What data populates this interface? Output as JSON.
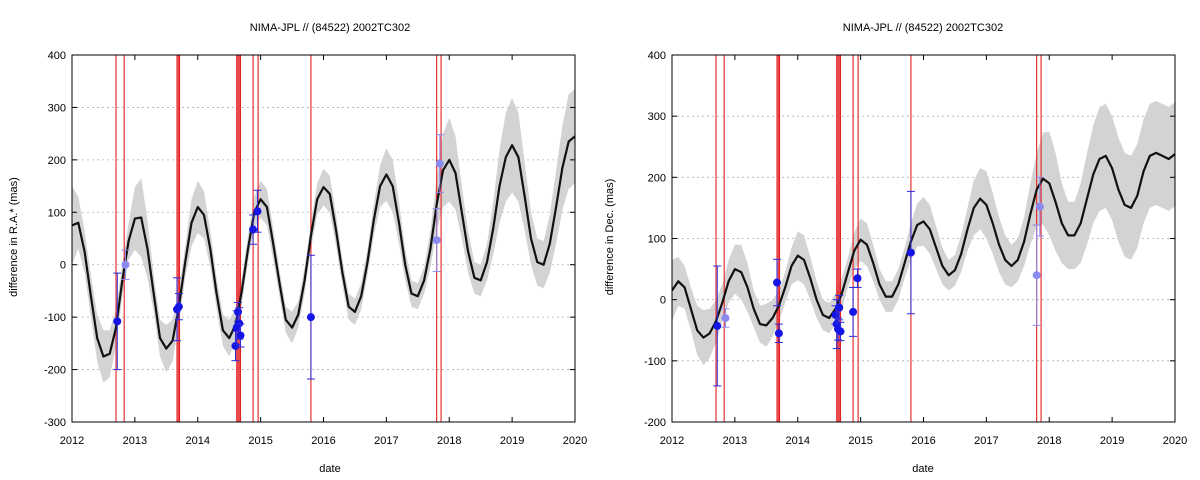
{
  "colors": {
    "model_line": "#111111",
    "uncertainty_band": "#d3d3d3",
    "observation": "#1515e6",
    "observation_light": "#8a8af0",
    "error_bar": "#2a2ae0",
    "observation_epoch": "#e52020",
    "grid": "#b0b0b0"
  },
  "chart_data": [
    {
      "type": "line",
      "title": "NIMA-JPL // (84522) 2002TC302",
      "xlabel": "date",
      "ylabel": "difference in R.A.* (mas)",
      "xlim": [
        2012,
        2020
      ],
      "ylim": [
        -300,
        400
      ],
      "x_ticks": [
        "2012",
        "2013",
        "2014",
        "2015",
        "2016",
        "2017",
        "2018",
        "2019",
        "2020"
      ],
      "y_ticks": [
        "-300",
        "-200",
        "-100",
        "0",
        "100",
        "200",
        "300",
        "400"
      ],
      "grid": "horizontal dashed",
      "model_curve": {
        "x": [
          2012.0,
          2012.1,
          2012.2,
          2012.3,
          2012.4,
          2012.5,
          2012.6,
          2012.7,
          2012.8,
          2012.9,
          2013.0,
          2013.1,
          2013.2,
          2013.3,
          2013.4,
          2013.5,
          2013.6,
          2013.7,
          2013.8,
          2013.9,
          2014.0,
          2014.1,
          2014.2,
          2014.3,
          2014.4,
          2014.5,
          2014.6,
          2014.7,
          2014.8,
          2014.9,
          2015.0,
          2015.1,
          2015.2,
          2015.3,
          2015.4,
          2015.5,
          2015.6,
          2015.7,
          2015.8,
          2015.9,
          2016.0,
          2016.1,
          2016.2,
          2016.3,
          2016.4,
          2016.5,
          2016.6,
          2016.7,
          2016.8,
          2016.9,
          2017.0,
          2017.1,
          2017.2,
          2017.3,
          2017.4,
          2017.5,
          2017.6,
          2017.7,
          2017.8,
          2017.9,
          2018.0,
          2018.1,
          2018.2,
          2018.3,
          2018.4,
          2018.5,
          2018.6,
          2018.7,
          2018.8,
          2018.9,
          2019.0,
          2019.1,
          2019.2,
          2019.3,
          2019.4,
          2019.5,
          2019.6,
          2019.7,
          2019.8,
          2019.9,
          2020.0
        ],
        "y": [
          75,
          80,
          25,
          -60,
          -140,
          -175,
          -170,
          -120,
          -30,
          45,
          88,
          90,
          30,
          -55,
          -140,
          -160,
          -145,
          -80,
          5,
          80,
          110,
          95,
          30,
          -55,
          -125,
          -140,
          -115,
          -50,
          30,
          100,
          125,
          110,
          40,
          -35,
          -105,
          -120,
          -95,
          -30,
          55,
          125,
          148,
          135,
          65,
          -15,
          -80,
          -90,
          -60,
          5,
          85,
          150,
          172,
          150,
          80,
          0,
          -55,
          -60,
          -30,
          30,
          115,
          180,
          200,
          175,
          100,
          25,
          -25,
          -30,
          5,
          70,
          150,
          205,
          228,
          205,
          130,
          50,
          5,
          0,
          40,
          110,
          185,
          235,
          245
        ],
        "band_halfwidth": [
          75,
          50,
          40,
          40,
          45,
          50,
          45,
          35,
          30,
          35,
          60,
          75,
          55,
          35,
          35,
          45,
          40,
          30,
          30,
          45,
          50,
          45,
          35,
          30,
          30,
          35,
          30,
          25,
          25,
          30,
          35,
          35,
          30,
          25,
          25,
          30,
          25,
          25,
          25,
          30,
          35,
          35,
          30,
          25,
          25,
          25,
          25,
          25,
          30,
          40,
          50,
          50,
          40,
          30,
          25,
          25,
          25,
          35,
          50,
          70,
          80,
          70,
          50,
          40,
          30,
          30,
          35,
          50,
          70,
          85,
          90,
          85,
          65,
          50,
          45,
          45,
          55,
          70,
          80,
          90,
          90
        ]
      },
      "observations": [
        {
          "x": 2012.72,
          "y": -108,
          "err": 92,
          "light": false
        },
        {
          "x": 2012.85,
          "y": 0,
          "err": 28,
          "light": true
        },
        {
          "x": 2013.67,
          "y": -85,
          "err": 60,
          "light": false
        },
        {
          "x": 2013.7,
          "y": -80,
          "err": 25,
          "light": false
        },
        {
          "x": 2014.6,
          "y": -155,
          "err": 28,
          "light": false
        },
        {
          "x": 2014.62,
          "y": -120,
          "err": 32,
          "light": false
        },
        {
          "x": 2014.64,
          "y": -90,
          "err": 18,
          "light": false
        },
        {
          "x": 2014.66,
          "y": -112,
          "err": 30,
          "light": false
        },
        {
          "x": 2014.68,
          "y": -135,
          "err": 22,
          "light": false
        },
        {
          "x": 2014.88,
          "y": 67,
          "err": 28,
          "light": false
        },
        {
          "x": 2014.95,
          "y": 102,
          "err": 40,
          "light": false
        },
        {
          "x": 2015.8,
          "y": -100,
          "err": 118,
          "light": false
        },
        {
          "x": 2017.8,
          "y": 47,
          "err": 60,
          "light": true
        },
        {
          "x": 2017.85,
          "y": 193,
          "err": 55,
          "light": true
        }
      ],
      "epoch_lines": [
        2012.7,
        2012.83,
        2013.67,
        2013.69,
        2013.71,
        2014.62,
        2014.64,
        2014.66,
        2014.68,
        2014.88,
        2014.96,
        2015.8,
        2017.8,
        2017.87
      ]
    },
    {
      "type": "line",
      "title": "NIMA-JPL // (84522) 2002TC302",
      "xlabel": "date",
      "ylabel": "difference in Dec. (mas)",
      "xlim": [
        2012,
        2020
      ],
      "ylim": [
        -200,
        400
      ],
      "x_ticks": [
        "2012",
        "2013",
        "2014",
        "2015",
        "2016",
        "2017",
        "2018",
        "2019",
        "2020"
      ],
      "y_ticks": [
        "-200",
        "-100",
        "0",
        "100",
        "200",
        "300",
        "400"
      ],
      "grid": "horizontal dashed",
      "model_curve": {
        "x": [
          2012.0,
          2012.1,
          2012.2,
          2012.3,
          2012.4,
          2012.5,
          2012.6,
          2012.7,
          2012.8,
          2012.9,
          2013.0,
          2013.1,
          2013.2,
          2013.3,
          2013.4,
          2013.5,
          2013.6,
          2013.7,
          2013.8,
          2013.9,
          2014.0,
          2014.1,
          2014.2,
          2014.3,
          2014.4,
          2014.5,
          2014.6,
          2014.7,
          2014.8,
          2014.9,
          2015.0,
          2015.1,
          2015.2,
          2015.3,
          2015.4,
          2015.5,
          2015.6,
          2015.7,
          2015.8,
          2015.9,
          2016.0,
          2016.1,
          2016.2,
          2016.3,
          2016.4,
          2016.5,
          2016.6,
          2016.7,
          2016.8,
          2016.9,
          2017.0,
          2017.1,
          2017.2,
          2017.3,
          2017.4,
          2017.5,
          2017.6,
          2017.7,
          2017.8,
          2017.9,
          2018.0,
          2018.1,
          2018.2,
          2018.3,
          2018.4,
          2018.5,
          2018.6,
          2018.7,
          2018.8,
          2018.9,
          2019.0,
          2019.1,
          2019.2,
          2019.3,
          2019.4,
          2019.5,
          2019.6,
          2019.7,
          2019.8,
          2019.9,
          2020.0
        ],
        "y": [
          15,
          30,
          20,
          -15,
          -50,
          -62,
          -55,
          -35,
          -5,
          30,
          50,
          45,
          20,
          -15,
          -40,
          -42,
          -30,
          -10,
          20,
          55,
          72,
          65,
          35,
          0,
          -25,
          -30,
          -15,
          10,
          45,
          80,
          98,
          90,
          60,
          25,
          5,
          5,
          25,
          60,
          95,
          122,
          128,
          115,
          85,
          55,
          40,
          48,
          75,
          115,
          150,
          165,
          155,
          125,
          90,
          65,
          55,
          65,
          95,
          140,
          180,
          198,
          190,
          160,
          125,
          105,
          105,
          125,
          165,
          205,
          230,
          235,
          215,
          180,
          155,
          150,
          170,
          210,
          235,
          240,
          235,
          230,
          238
        ],
        "band_halfwidth": [
          50,
          40,
          35,
          35,
          40,
          45,
          40,
          35,
          30,
          35,
          40,
          45,
          40,
          30,
          30,
          35,
          30,
          25,
          25,
          30,
          40,
          40,
          35,
          30,
          25,
          25,
          25,
          25,
          25,
          30,
          35,
          35,
          30,
          25,
          25,
          25,
          25,
          25,
          30,
          35,
          40,
          40,
          35,
          30,
          25,
          25,
          30,
          35,
          45,
          50,
          55,
          50,
          45,
          40,
          35,
          35,
          40,
          50,
          60,
          75,
          85,
          80,
          65,
          55,
          55,
          65,
          75,
          80,
          85,
          85,
          85,
          85,
          85,
          85,
          85,
          85,
          85,
          85,
          85,
          85,
          85
        ]
      },
      "observations": [
        {
          "x": 2012.72,
          "y": -43,
          "err": 98,
          "light": false
        },
        {
          "x": 2012.85,
          "y": -30,
          "err": 15,
          "light": true
        },
        {
          "x": 2013.67,
          "y": 28,
          "err": 38,
          "light": false
        },
        {
          "x": 2013.7,
          "y": -55,
          "err": 15,
          "light": false
        },
        {
          "x": 2014.6,
          "y": -25,
          "err": 15,
          "light": false
        },
        {
          "x": 2014.62,
          "y": -40,
          "err": 40,
          "light": false
        },
        {
          "x": 2014.64,
          "y": -48,
          "err": 18,
          "light": false
        },
        {
          "x": 2014.66,
          "y": -13,
          "err": 20,
          "light": false
        },
        {
          "x": 2014.68,
          "y": -52,
          "err": 15,
          "light": false
        },
        {
          "x": 2014.88,
          "y": -20,
          "err": 40,
          "light": false
        },
        {
          "x": 2014.95,
          "y": 35,
          "err": 15,
          "light": false
        },
        {
          "x": 2015.8,
          "y": 77,
          "err": 100,
          "light": false
        },
        {
          "x": 2017.8,
          "y": 40,
          "err": 82,
          "light": true
        },
        {
          "x": 2017.85,
          "y": 152,
          "err": 48,
          "light": true
        }
      ],
      "epoch_lines": [
        2012.7,
        2012.83,
        2013.67,
        2013.69,
        2013.71,
        2014.62,
        2014.64,
        2014.66,
        2014.68,
        2014.88,
        2014.96,
        2015.8,
        2017.8,
        2017.87
      ]
    }
  ]
}
